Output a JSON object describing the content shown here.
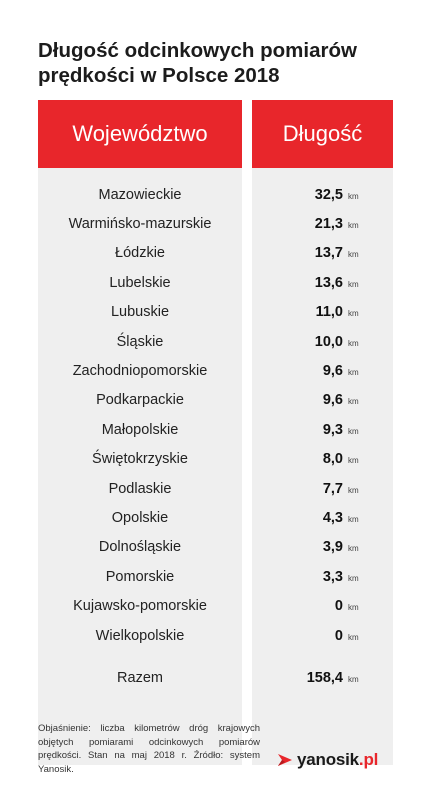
{
  "title": "Długość odcinkowych pomiarów prędkości w Polsce 2018",
  "chart_data": {
    "type": "table",
    "columns": [
      "Województwo",
      "Długość"
    ],
    "unit": "km",
    "rows": [
      {
        "name": "Mazowieckie",
        "value": "32,5"
      },
      {
        "name": "Warmińsko-mazurskie",
        "value": "21,3"
      },
      {
        "name": "Łódzkie",
        "value": "13,7"
      },
      {
        "name": "Lubelskie",
        "value": "13,6"
      },
      {
        "name": "Lubuskie",
        "value": "11,0"
      },
      {
        "name": "Śląskie",
        "value": "10,0"
      },
      {
        "name": "Zachodniopomorskie",
        "value": "9,6"
      },
      {
        "name": "Podkarpackie",
        "value": "9,6"
      },
      {
        "name": "Małopolskie",
        "value": "9,3"
      },
      {
        "name": "Świętokrzyskie",
        "value": "8,0"
      },
      {
        "name": "Podlaskie",
        "value": "7,7"
      },
      {
        "name": "Opolskie",
        "value": "4,3"
      },
      {
        "name": "Dolnośląskie",
        "value": "3,9"
      },
      {
        "name": "Pomorskie",
        "value": "3,3"
      },
      {
        "name": "Kujawsko-pomorskie",
        "value": "0"
      },
      {
        "name": "Wielkopolskie",
        "value": "0"
      }
    ],
    "total": {
      "name": "Razem",
      "value": "158,4"
    }
  },
  "note": "Objaśnienie: liczba kilometrów dróg krajowych objętych pomiarami odcinkowych pomiarów prędkości. Stan na maj 2018 r. Źródło: system Yanosik.",
  "logo": {
    "main": "yanosik",
    "suffix": ".pl"
  },
  "colors": {
    "header": "#e8262b",
    "body": "#efefef"
  }
}
